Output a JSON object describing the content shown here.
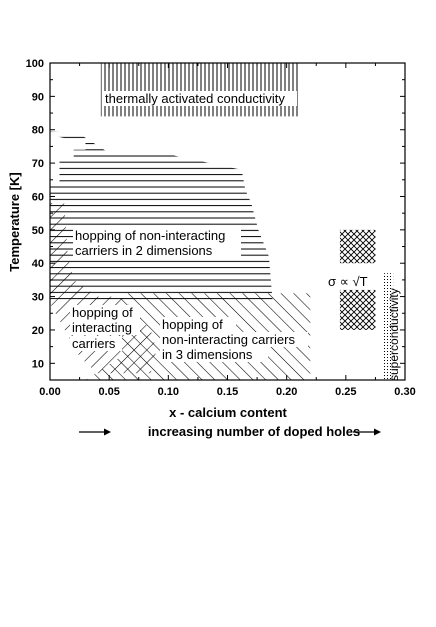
{
  "chart_data": {
    "type": "other",
    "xlabel": "x - calcium content",
    "xlabel2": "increasing number of doped holes",
    "ylabel": "Temperature  [K]",
    "xlim": [
      0.0,
      0.3
    ],
    "ylim": [
      5,
      100
    ],
    "xticks": [
      "0.00",
      "0.05",
      "0.10",
      "0.15",
      "0.20",
      "0.25",
      "0.30"
    ],
    "yticks": [
      "10",
      "20",
      "30",
      "40",
      "50",
      "60",
      "70",
      "80",
      "90",
      "100"
    ],
    "regions": [
      {
        "name": "thermally activated conductivity",
        "pattern": "vertical lines",
        "x": [
          0.043,
          0.21
        ],
        "y": [
          84,
          100
        ]
      },
      {
        "name": "hopping of non-interacting carriers in 2 dimensions",
        "pattern": "horizontal lines",
        "x": [
          0.0,
          0.185
        ],
        "y": [
          29,
          78
        ]
      },
      {
        "name": "hopping of interacting carriers",
        "pattern": "diagonal hatching",
        "x": [
          0.0,
          0.09
        ],
        "y": [
          7,
          57
        ]
      },
      {
        "name": "hopping of non-interacting carriers in 3 dimensions",
        "pattern": "diagonal hatching",
        "x": [
          0.055,
          0.22
        ],
        "y": [
          5,
          31
        ]
      },
      {
        "name": "sigma proportional to sqrt(T)",
        "pattern": "cross-hatch",
        "x": [
          0.245,
          0.275
        ],
        "y": [
          20,
          50
        ]
      },
      {
        "name": "superconductivity",
        "pattern": "vertical dotted lines",
        "x": [
          0.28,
          0.29
        ],
        "y": [
          5,
          37
        ]
      }
    ],
    "labels": {
      "thermal": "thermally activated conductivity",
      "twoD_1": "hopping of non-interacting",
      "twoD_2": "carriers in 2 dimensions",
      "inter_1": "hopping of",
      "inter_2": "interacting",
      "inter_3": "carriers",
      "threeD_1": "hopping of",
      "threeD_2": "non-interacting carriers",
      "threeD_3": "in 3 dimensions",
      "sigma": "σ  ∝ √T",
      "supercond": "superconductivity"
    }
  }
}
